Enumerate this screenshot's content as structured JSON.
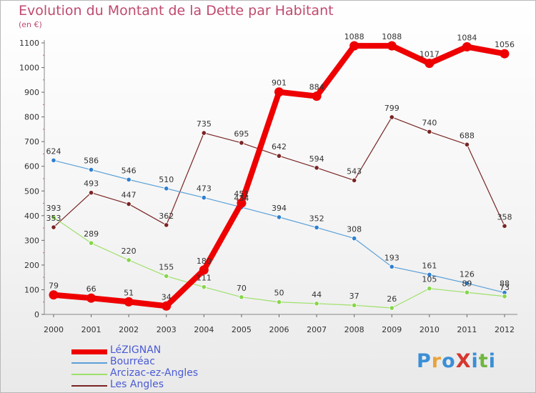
{
  "title": "Evolution du Montant de la Dette par Habitant",
  "subtitle": "(en €)",
  "logo": {
    "text": "ProXiti",
    "colors": [
      "#3a8fd6",
      "#e8a33a",
      "#3a8fd6",
      "#d6362f",
      "#3a8fd6",
      "#6fb640",
      "#3a8fd6"
    ]
  },
  "chart_data": {
    "type": "line",
    "title": "Evolution du Montant de la Dette par Habitant",
    "ylabel": "(en €)",
    "xlabel": "",
    "x": [
      "2000",
      "2001",
      "2002",
      "2003",
      "2004",
      "2005",
      "2006",
      "2007",
      "2008",
      "2009",
      "2010",
      "2011",
      "2012"
    ],
    "ylim": [
      0,
      1100
    ],
    "yticks": [
      0,
      100,
      200,
      300,
      400,
      500,
      600,
      700,
      800,
      900,
      1000,
      1100
    ],
    "grid": false,
    "legend_position": "bottom-left",
    "series": [
      {
        "name": "Les Angles",
        "color": "#7a2424",
        "values": [
          353,
          493,
          447,
          362,
          735,
          695,
          642,
          594,
          543,
          799,
          740,
          688,
          358
        ]
      },
      {
        "name": "Bourréac",
        "color": "#5aa0d8",
        "values": [
          624,
          586,
          546,
          510,
          473,
          434,
          394,
          352,
          308,
          193,
          161,
          126,
          88
        ]
      },
      {
        "name": "Arcizac-ez-Angles",
        "color": "#9ee06a",
        "values": [
          393,
          289,
          220,
          155,
          111,
          70,
          50,
          44,
          37,
          26,
          105,
          89,
          73
        ]
      },
      {
        "name": "LéZIGNAN",
        "color": "#ee0000",
        "values": [
          79,
          66,
          51,
          34,
          180,
          451,
          901,
          884,
          1088,
          1088,
          1017,
          1084,
          1056
        ]
      }
    ],
    "legend_order": [
      "LéZIGNAN",
      "Bourréac",
      "Arcizac-ez-Angles",
      "Les Angles"
    ]
  }
}
